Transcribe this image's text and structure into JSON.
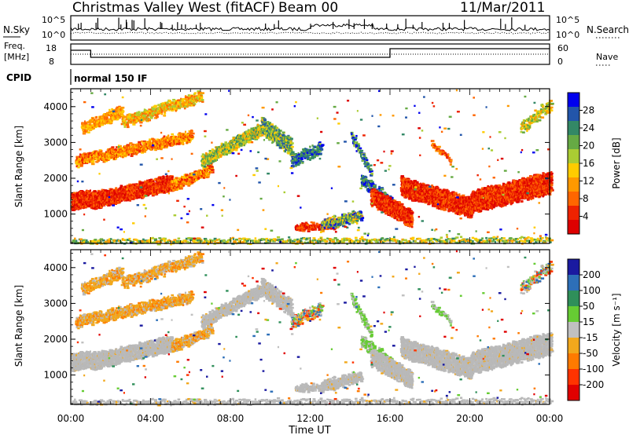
{
  "header": {
    "station": "Christmas Valley West (fitACF)",
    "beam": "Beam 00",
    "date": "11/Mar/2011"
  },
  "panels": {
    "nsky_label": "N.Sky",
    "nsearch_label": "N.Search",
    "freq_label_line1": "Freq.",
    "freq_label_line2": "[MHz]",
    "nave_label": "Nave",
    "cpid_label": "CPID",
    "cpid_value": "normal 150 IF",
    "nsky_ticks": [
      "10^5",
      "10^0"
    ],
    "nsearch_ticks": [
      "10^5",
      "10^0"
    ],
    "freq_ticks": [
      "18",
      "8"
    ],
    "nave_ticks": [
      "60",
      "0"
    ]
  },
  "chart_data": [
    {
      "type": "heatmap",
      "name_panel": "power",
      "xlabel": "Time UT",
      "ylabel": "Slant Range [km]",
      "x_ticks": [
        "00:00",
        "04:00",
        "08:00",
        "12:00",
        "16:00",
        "20:00",
        "00:00"
      ],
      "x_range_hours": [
        0,
        24
      ],
      "y_ticks": [
        1000,
        2000,
        3000,
        4000
      ],
      "ylim": [
        180,
        4500
      ],
      "colorbar": {
        "label": "Power [dB]",
        "ticks": [
          4,
          8,
          12,
          16,
          20,
          24,
          28
        ],
        "colors": [
          "#0000ee",
          "#2255aa",
          "#338866",
          "#66aa44",
          "#aacc33",
          "#ffcc00",
          "#ff9900",
          "#ff6600",
          "#ee2200",
          "#dd0000"
        ]
      }
    },
    {
      "type": "heatmap",
      "name_panel": "velocity",
      "xlabel": "Time UT",
      "ylabel": "Slant Range [km]",
      "x_ticks": [
        "00:00",
        "04:00",
        "08:00",
        "12:00",
        "16:00",
        "20:00",
        "00:00"
      ],
      "x_range_hours": [
        0,
        24
      ],
      "y_ticks": [
        1000,
        2000,
        3000,
        4000
      ],
      "ylim": [
        180,
        4500
      ],
      "colorbar": {
        "label": "Velocity [m s⁻¹]",
        "ticks": [
          200,
          100,
          50,
          15,
          -15,
          -50,
          -100,
          -200
        ],
        "colors": [
          "#1a1aa0",
          "#2d6fb8",
          "#2f8f5a",
          "#66cc33",
          "#c0c0c0",
          "#f2a81c",
          "#ff7a00",
          "#ff3300",
          "#e00000"
        ]
      }
    }
  ],
  "colors": {
    "ground_scatter": "#b9b9b9",
    "axis": "#000000",
    "background": "#ffffff"
  }
}
